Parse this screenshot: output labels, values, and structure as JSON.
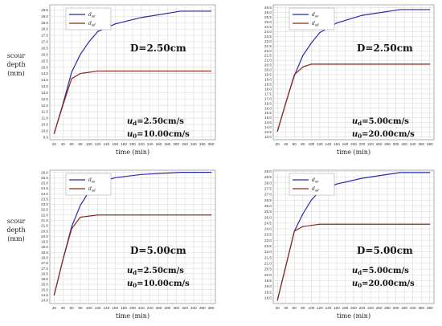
{
  "chart_data": [
    {
      "type": "line",
      "x_ticks": [
        20,
        40,
        60,
        80,
        100,
        120,
        140,
        160,
        180,
        200,
        220,
        240,
        260,
        280,
        300,
        320,
        340,
        360,
        380
      ],
      "xlim": [
        10,
        390
      ],
      "ylim": [
        9.3,
        19.9
      ],
      "y_ticks": [
        "9.5",
        "10.0",
        "10.5",
        "11.0",
        "11.5",
        "12.0",
        "12.5",
        "13.0",
        "13.5",
        "14.0",
        "14.5",
        "15.0",
        "15.5",
        "16.0",
        "16.5",
        "17.0",
        "17.5",
        "18.0",
        "18.5",
        "19.0",
        "19.5"
      ],
      "xlabel": "time (min)",
      "ylabel": [
        "scour",
        "depth",
        "(mm)"
      ],
      "D_label": "D=2.50cm",
      "ud_label": "u",
      "ud_sub": "d",
      "ud_value": "=2.50cm/s",
      "u0_label": "u",
      "u0_sub": "0",
      "u0_value": "=10.00cm/s",
      "series": [
        {
          "name": "d_se",
          "color": "#2a2aa8",
          "x": [
            20,
            40,
            60,
            80,
            100,
            120,
            160,
            220,
            310,
            380
          ],
          "y": [
            9.8,
            12.1,
            14.6,
            16.0,
            17.0,
            17.8,
            18.4,
            18.9,
            19.4,
            19.4
          ]
        },
        {
          "name": "d_sd",
          "color": "#8b2a1a",
          "x": [
            20,
            40,
            60,
            80,
            100,
            120,
            160,
            220,
            310,
            380
          ],
          "y": [
            9.8,
            12.0,
            14.1,
            14.5,
            14.6,
            14.7,
            14.7,
            14.7,
            14.7,
            14.7
          ]
        }
      ]
    },
    {
      "type": "line",
      "x_ticks": [
        20,
        40,
        60,
        80,
        100,
        120,
        140,
        160,
        180,
        200,
        220,
        240,
        260,
        280,
        300,
        320,
        340,
        360,
        380
      ],
      "xlim": [
        10,
        390
      ],
      "ylim": [
        12.7,
        26.8
      ],
      "y_ticks": [
        "13.0",
        "13.5",
        "14.0",
        "14.5",
        "15.0",
        "15.5",
        "16.0",
        "16.5",
        "17.0",
        "17.5",
        "18.0",
        "18.5",
        "19.0",
        "19.5",
        "20.0",
        "20.5",
        "21.0",
        "21.5",
        "22.0",
        "22.5",
        "23.0",
        "23.5",
        "24.0",
        "24.5",
        "25.0",
        "25.5",
        "26.0",
        "26.5"
      ],
      "xlabel": "time (min)",
      "ylabel": [],
      "D_label": "D=2.50cm",
      "ud_label": "u",
      "ud_sub": "d",
      "ud_value": "=5.00cm/s",
      "u0_label": "u",
      "u0_sub": "0",
      "u0_value": "=20.00cm/s",
      "series": [
        {
          "name": "d_se",
          "color": "#2a2aa8",
          "x": [
            20,
            40,
            60,
            80,
            100,
            120,
            160,
            220,
            310,
            380
          ],
          "y": [
            13.6,
            16.6,
            19.4,
            21.5,
            22.8,
            23.9,
            24.9,
            25.7,
            26.3,
            26.3
          ]
        },
        {
          "name": "d_sd",
          "color": "#8b2a1a",
          "x": [
            20,
            40,
            60,
            80,
            100,
            120,
            160,
            220,
            310,
            380
          ],
          "y": [
            13.6,
            16.6,
            19.5,
            20.3,
            20.6,
            20.6,
            20.6,
            20.6,
            20.6,
            20.6
          ]
        }
      ]
    },
    {
      "type": "line",
      "x_ticks": [
        20,
        40,
        60,
        80,
        100,
        120,
        140,
        160,
        180,
        200,
        220,
        240,
        260,
        280,
        300,
        320,
        340,
        360,
        380
      ],
      "xlim": [
        10,
        390
      ],
      "ylim": [
        13.7,
        26.2
      ],
      "y_ticks": [
        "14.0",
        "14.5",
        "15.0",
        "15.5",
        "16.0",
        "16.5",
        "17.0",
        "17.5",
        "18.0",
        "18.5",
        "19.0",
        "19.5",
        "20.0",
        "20.5",
        "21.0",
        "21.5",
        "22.0",
        "22.5",
        "23.0",
        "23.5",
        "24.0",
        "24.5",
        "25.0",
        "25.5",
        "26.0"
      ],
      "xlabel": "time (min)",
      "ylabel": [
        "scour",
        "depth",
        "(mm)"
      ],
      "D_label": "D=5.00cm",
      "ud_label": "u",
      "ud_sub": "d",
      "ud_value": "=2.50cm/s",
      "u0_label": "u",
      "u0_sub": "0",
      "u0_value": "=10.00cm/s",
      "series": [
        {
          "name": "d_se",
          "color": "#2a2aa8",
          "x": [
            20,
            40,
            60,
            80,
            100,
            120,
            160,
            220,
            310,
            380
          ],
          "y": [
            14.5,
            17.8,
            20.9,
            22.9,
            24.2,
            25.0,
            25.5,
            25.8,
            26.0,
            26.0
          ]
        },
        {
          "name": "d_sd",
          "color": "#8b2a1a",
          "x": [
            20,
            40,
            60,
            80,
            100,
            120,
            160,
            220,
            310,
            380
          ],
          "y": [
            14.5,
            17.8,
            20.7,
            21.8,
            21.9,
            22.0,
            22.0,
            22.0,
            22.0,
            22.0
          ]
        }
      ]
    },
    {
      "type": "line",
      "x_ticks": [
        20,
        40,
        60,
        80,
        100,
        120,
        140,
        160,
        180,
        200,
        220,
        240,
        260,
        280,
        300,
        320,
        340,
        360,
        380
      ],
      "xlim": [
        10,
        390
      ],
      "ylim": [
        17.5,
        29.1
      ],
      "y_ticks": [
        "18.0",
        "18.5",
        "19.0",
        "19.5",
        "20.0",
        "20.5",
        "21.0",
        "21.5",
        "22.0",
        "22.5",
        "23.0",
        "23.5",
        "24.0",
        "24.5",
        "25.0",
        "25.5",
        "26.0",
        "26.5",
        "27.0",
        "27.5",
        "28.0",
        "28.5",
        "29.0"
      ],
      "xlabel": "time (min)",
      "ylabel": [],
      "D_label": "D=5.00cm",
      "ud_label": "u",
      "ud_sub": "d",
      "ud_value": "=5.00cm/s",
      "u0_label": "u",
      "u0_sub": "0",
      "u0_value": "=20.00cm/s",
      "series": [
        {
          "name": "d_se",
          "color": "#2a2aa8",
          "x": [
            20,
            40,
            60,
            80,
            100,
            120,
            160,
            220,
            310,
            380
          ],
          "y": [
            17.8,
            20.8,
            23.8,
            25.3,
            26.5,
            27.3,
            27.9,
            28.4,
            28.9,
            28.9
          ]
        },
        {
          "name": "d_sd",
          "color": "#8b2a1a",
          "x": [
            20,
            40,
            60,
            80,
            100,
            120,
            160,
            220,
            310,
            380
          ],
          "y": [
            17.8,
            20.8,
            23.8,
            24.2,
            24.3,
            24.4,
            24.4,
            24.4,
            24.4,
            24.4
          ]
        }
      ]
    }
  ],
  "legend": {
    "entries": [
      {
        "letter": "d",
        "sub": "se"
      },
      {
        "letter": "d",
        "sub": "sd"
      }
    ]
  }
}
